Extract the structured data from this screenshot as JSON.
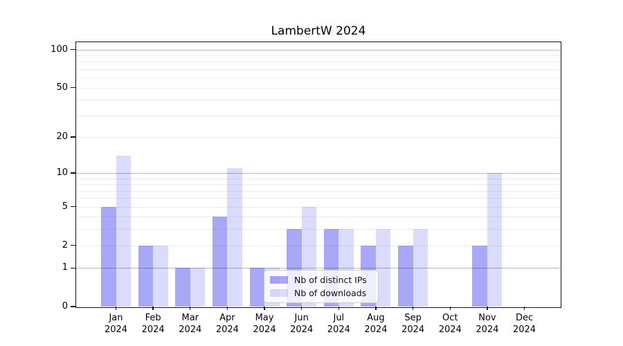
{
  "figure": {
    "title": "LambertW 2024"
  },
  "chart_data": {
    "type": "bar",
    "title": "LambertW 2024",
    "categories": [
      "Jan",
      "Feb",
      "Mar",
      "Apr",
      "May",
      "Jun",
      "Jul",
      "Aug",
      "Sep",
      "Oct",
      "Nov",
      "Dec"
    ],
    "year": "2024",
    "series": [
      {
        "name": "Nb of distinct IPs",
        "values": [
          5,
          2,
          1,
          4,
          1,
          3,
          3,
          2,
          2,
          0,
          2,
          0
        ],
        "color": "rgba(0,0,230,0.34)",
        "solid_color_hex": "#a9a9f7"
      },
      {
        "name": "Nb of downloads",
        "values": [
          14,
          2,
          1,
          11,
          1,
          5,
          3,
          3,
          3,
          0,
          10,
          0
        ],
        "color": "rgba(0,0,230,0.14)",
        "solid_color_hex": "#dbdbfa"
      }
    ],
    "y_axis": {
      "scale": "log1p",
      "tick_values": [
        0,
        1,
        2,
        5,
        10,
        20,
        50,
        100
      ],
      "ylim": [
        0,
        115
      ]
    },
    "x_axis": {
      "tick_label_line2": "2024"
    },
    "grid": {
      "major_values": [
        1,
        10,
        100
      ],
      "minor_values": [
        2,
        3,
        4,
        5,
        6,
        7,
        8,
        9,
        20,
        30,
        40,
        50,
        60,
        70,
        80,
        90
      ],
      "major_color": "#b6b6b6",
      "minor_color": "#ececec"
    },
    "legend": {
      "position": "lower center",
      "entries": [
        "Nb of distinct IPs",
        "Nb of downloads"
      ]
    }
  }
}
